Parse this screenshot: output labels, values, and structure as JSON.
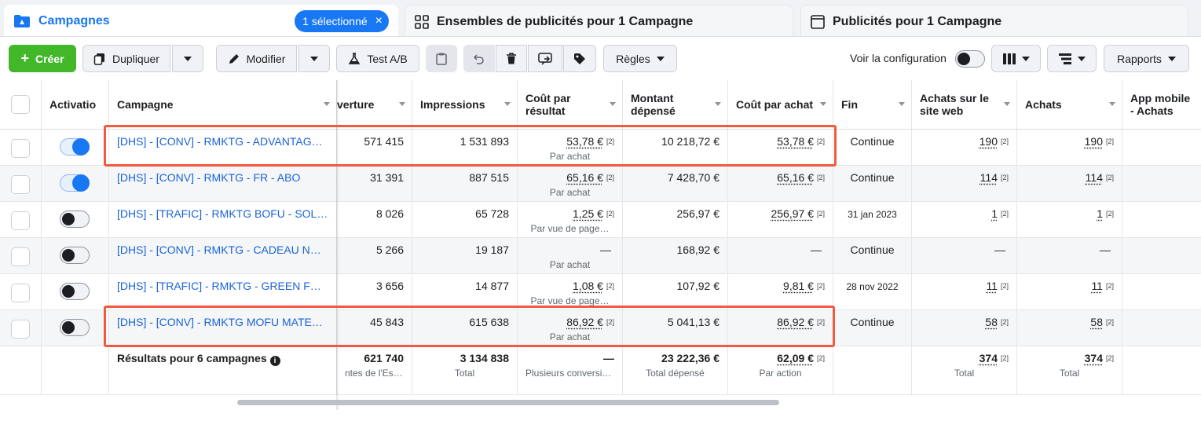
{
  "tabs": {
    "campaigns": {
      "label": "Campagnes",
      "badge": "1 sélectionné",
      "badge_close": "×"
    },
    "adsets": {
      "label": "Ensembles de publicités pour 1 Campagne"
    },
    "ads": {
      "label": "Publicités pour 1 Campagne"
    }
  },
  "toolbar": {
    "create": "Créer",
    "create_plus": "+",
    "duplicate": "Dupliquer",
    "edit": "Modifier",
    "abtest": "Test A/B",
    "rules": "Règles",
    "view_config": "Voir la configuration",
    "reports": "Rapports"
  },
  "columns": {
    "activation": "Activatio",
    "campaign": "Campagne",
    "reach": "verture",
    "impressions": "Impressions",
    "cost_per_result": "Coût par résultat",
    "spent": "Montant dépensé",
    "cost_per_purchase": "Coût par achat",
    "end": "Fin",
    "web_purchases": "Achats sur le site web",
    "purchases": "Achats",
    "app_purchases": "App mobile - Achats"
  },
  "rows": [
    {
      "name": "[DHS] - [CONV] - RMKTG - ADVANTAGE+ SHOPPING",
      "toggle_on": true,
      "reach": "571 415",
      "impressions": "1 531 893",
      "cpr": "53,78 €",
      "cpr_sup": "[2]",
      "cpr_sub": "Par achat",
      "spent": "10 218,72 €",
      "cpp": "53,78 €",
      "cpp_sup": "[2]",
      "end": "Continue",
      "web": "190",
      "web_sup": "[2]",
      "purch": "190",
      "purch_sup": "[2]"
    },
    {
      "name": "[DHS] - [CONV] - RMKTG - FR - ABO",
      "toggle_on": true,
      "reach": "31 391",
      "impressions": "887 515",
      "cpr": "65,16 €",
      "cpr_sup": "[2]",
      "cpr_sub": "Par achat",
      "spent": "7 428,70 €",
      "cpp": "65,16 €",
      "cpp_sup": "[2]",
      "end": "Continue",
      "web": "114",
      "web_sup": "[2]",
      "purch": "114",
      "purch_sup": "[2]"
    },
    {
      "name": "[DHS] - [TRAFIC] - RMKTG BOFU - SOLDES",
      "toggle_on": false,
      "reach": "8 026",
      "impressions": "65 728",
      "cpr": "1,25 €",
      "cpr_sup": "[2]",
      "cpr_sub": "Par vue de page…",
      "spent": "256,97 €",
      "cpp": "256,97 €",
      "cpp_sup": "[2]",
      "end": "31 jan 2023",
      "web": "1",
      "web_sup": "[2]",
      "purch": "1",
      "purch_sup": "[2]"
    },
    {
      "name": "[DHS] - [CONV] - RMKTG - CADEAU NOEL",
      "toggle_on": false,
      "reach": "5 266",
      "impressions": "19 187",
      "cpr": "—",
      "cpr_sup": "",
      "cpr_sub": "Par achat",
      "spent": "168,92 €",
      "cpp": "—",
      "cpp_sup": "",
      "end": "Continue",
      "web": "—",
      "web_sup": "",
      "purch": "—",
      "purch_sup": ""
    },
    {
      "name": "[DHS] - [TRAFIC] - RMKTG - GREEN FRIDAY",
      "toggle_on": false,
      "reach": "3 656",
      "impressions": "14 877",
      "cpr": "1,08 €",
      "cpr_sup": "[2]",
      "cpr_sub": "Par vue de page…",
      "spent": "107,92 €",
      "cpp": "9,81 €",
      "cpp_sup": "[2]",
      "end": "28 nov 2022",
      "web": "11",
      "web_sup": "[2]",
      "purch": "11",
      "purch_sup": "[2]"
    },
    {
      "name": "[DHS] - [CONV] - RMKTG MOFU MATELAS",
      "toggle_on": false,
      "reach": "45 843",
      "impressions": "615 638",
      "cpr": "86,92 €",
      "cpr_sup": "[2]",
      "cpr_sub": "Par achat",
      "spent": "5 041,13 €",
      "cpp": "86,92 €",
      "cpp_sup": "[2]",
      "end": "Continue",
      "web": "58",
      "web_sup": "[2]",
      "purch": "58",
      "purch_sup": "[2]"
    }
  ],
  "totals": {
    "label": "Résultats pour 6 campagnes",
    "reach": "621 740",
    "reach_sub": "ntes de l'Espac…",
    "impressions": "3 134 838",
    "impressions_sub": "Total",
    "cpr": "—",
    "cpr_sub": "Plusieurs conversio…",
    "spent": "23 222,36 €",
    "spent_sub": "Total dépensé",
    "cpp": "62,09 €",
    "cpp_sup": "[2]",
    "cpp_sub": "Par action",
    "web": "374",
    "web_sup": "[2]",
    "web_sub": "Total",
    "purch": "374",
    "purch_sup": "[2]",
    "purch_sub": "Total"
  },
  "colors": {
    "accent": "#1877f2",
    "create": "#42b72a",
    "highlight": "#f05a3e",
    "link": "#1a63d8"
  }
}
